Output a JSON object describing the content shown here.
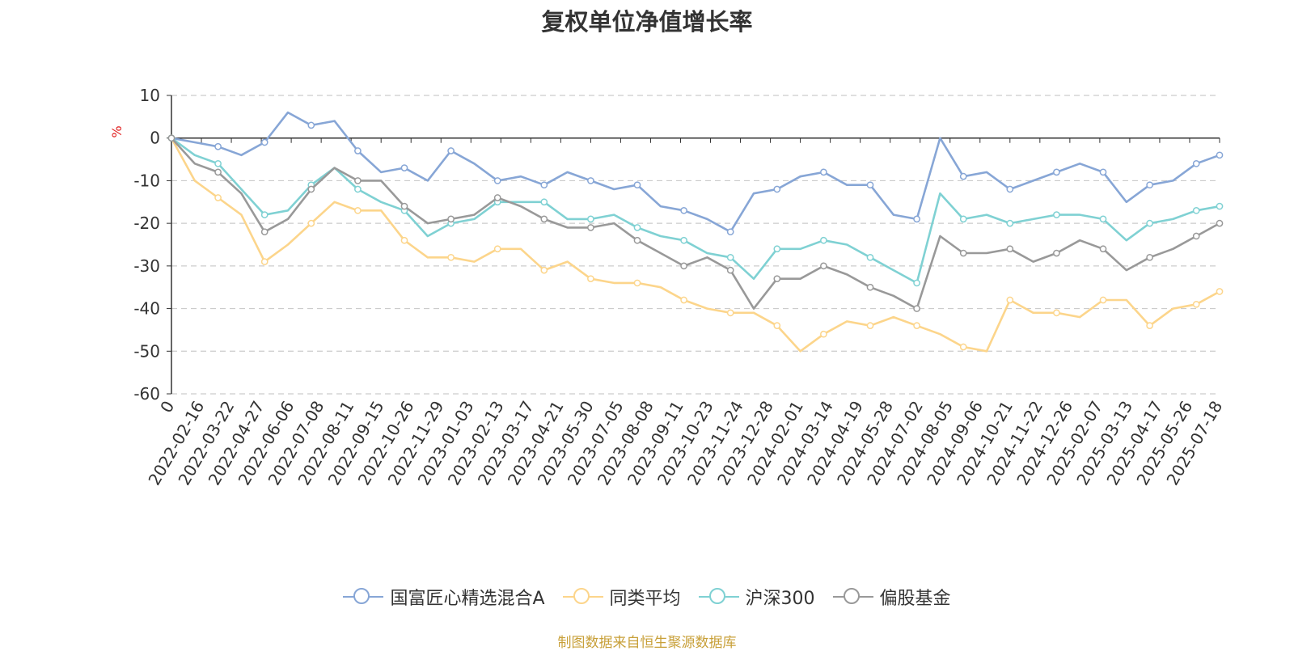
{
  "chart_data": {
    "type": "line",
    "title": "复权单位净值增长率",
    "ylabel": "%",
    "ylim": [
      -60,
      10
    ],
    "yticks": [
      10,
      0,
      -10,
      -20,
      -30,
      -40,
      -50,
      -60
    ],
    "x_ticks": [
      "0",
      "2022-02-16",
      "2022-03-22",
      "2022-04-27",
      "2022-06-06",
      "2022-07-08",
      "2022-08-11",
      "2022-09-15",
      "2022-10-26",
      "2022-11-29",
      "2023-01-03",
      "2023-02-13",
      "2023-03-17",
      "2023-04-21",
      "2023-05-30",
      "2023-07-05",
      "2023-08-08",
      "2023-09-11",
      "2023-10-23",
      "2023-11-24",
      "2023-12-28",
      "2024-02-01",
      "2024-03-14",
      "2024-04-19",
      "2024-05-28",
      "2024-07-02",
      "2024-08-05",
      "2024-09-06",
      "2024-10-21",
      "2024-11-22",
      "2024-12-26",
      "2025-02-07",
      "2025-03-13",
      "2025-04-17",
      "2025-05-26",
      "2025-07-18"
    ],
    "grid": true,
    "legend_position": "bottom",
    "series": [
      {
        "name": "国富匠心精选混合A",
        "color": "#87a6d6",
        "values": [
          0,
          -1,
          -2,
          -4,
          -1,
          6,
          3,
          4,
          -3,
          -8,
          -7,
          -10,
          -3,
          -6,
          -10,
          -9,
          -11,
          -8,
          -10,
          -12,
          -11,
          -16,
          -17,
          -19,
          -22,
          -13,
          -12,
          -9,
          -8,
          -11,
          -11,
          -18,
          -19,
          0,
          -9,
          -8,
          -12,
          -10,
          -8,
          -6,
          -8,
          -15,
          -11,
          -10,
          -6,
          -4
        ]
      },
      {
        "name": "同类平均",
        "color": "#fcd58b",
        "values": [
          0,
          -10,
          -14,
          -18,
          -29,
          -25,
          -20,
          -15,
          -17,
          -17,
          -24,
          -28,
          -28,
          -29,
          -26,
          -26,
          -31,
          -29,
          -33,
          -34,
          -34,
          -35,
          -38,
          -40,
          -41,
          -41,
          -44,
          -50,
          -46,
          -43,
          -44,
          -42,
          -44,
          -46,
          -49,
          -50,
          -38,
          -41,
          -41,
          -42,
          -38,
          -38,
          -44,
          -40,
          -39,
          -36
        ]
      },
      {
        "name": "沪深300",
        "color": "#7fd1d3",
        "values": [
          0,
          -4,
          -6,
          -12,
          -18,
          -17,
          -11,
          -7,
          -12,
          -15,
          -17,
          -23,
          -20,
          -19,
          -15,
          -15,
          -15,
          -19,
          -19,
          -18,
          -21,
          -23,
          -24,
          -27,
          -28,
          -33,
          -26,
          -26,
          -24,
          -25,
          -28,
          -31,
          -34,
          -13,
          -19,
          -18,
          -20,
          -19,
          -18,
          -18,
          -19,
          -24,
          -20,
          -19,
          -17,
          -16
        ]
      },
      {
        "name": "偏股基金",
        "color": "#999999",
        "values": [
          0,
          -6,
          -8,
          -13,
          -22,
          -19,
          -12,
          -7,
          -10,
          -10,
          -16,
          -20,
          -19,
          -18,
          -14,
          -16,
          -19,
          -21,
          -21,
          -20,
          -24,
          -27,
          -30,
          -28,
          -31,
          -40,
          -33,
          -33,
          -30,
          -32,
          -35,
          -37,
          -40,
          -23,
          -27,
          -27,
          -26,
          -29,
          -27,
          -24,
          -26,
          -31,
          -28,
          -26,
          -23,
          -20
        ]
      }
    ]
  },
  "footer": {
    "source": "制图数据来自恒生聚源数据库"
  }
}
